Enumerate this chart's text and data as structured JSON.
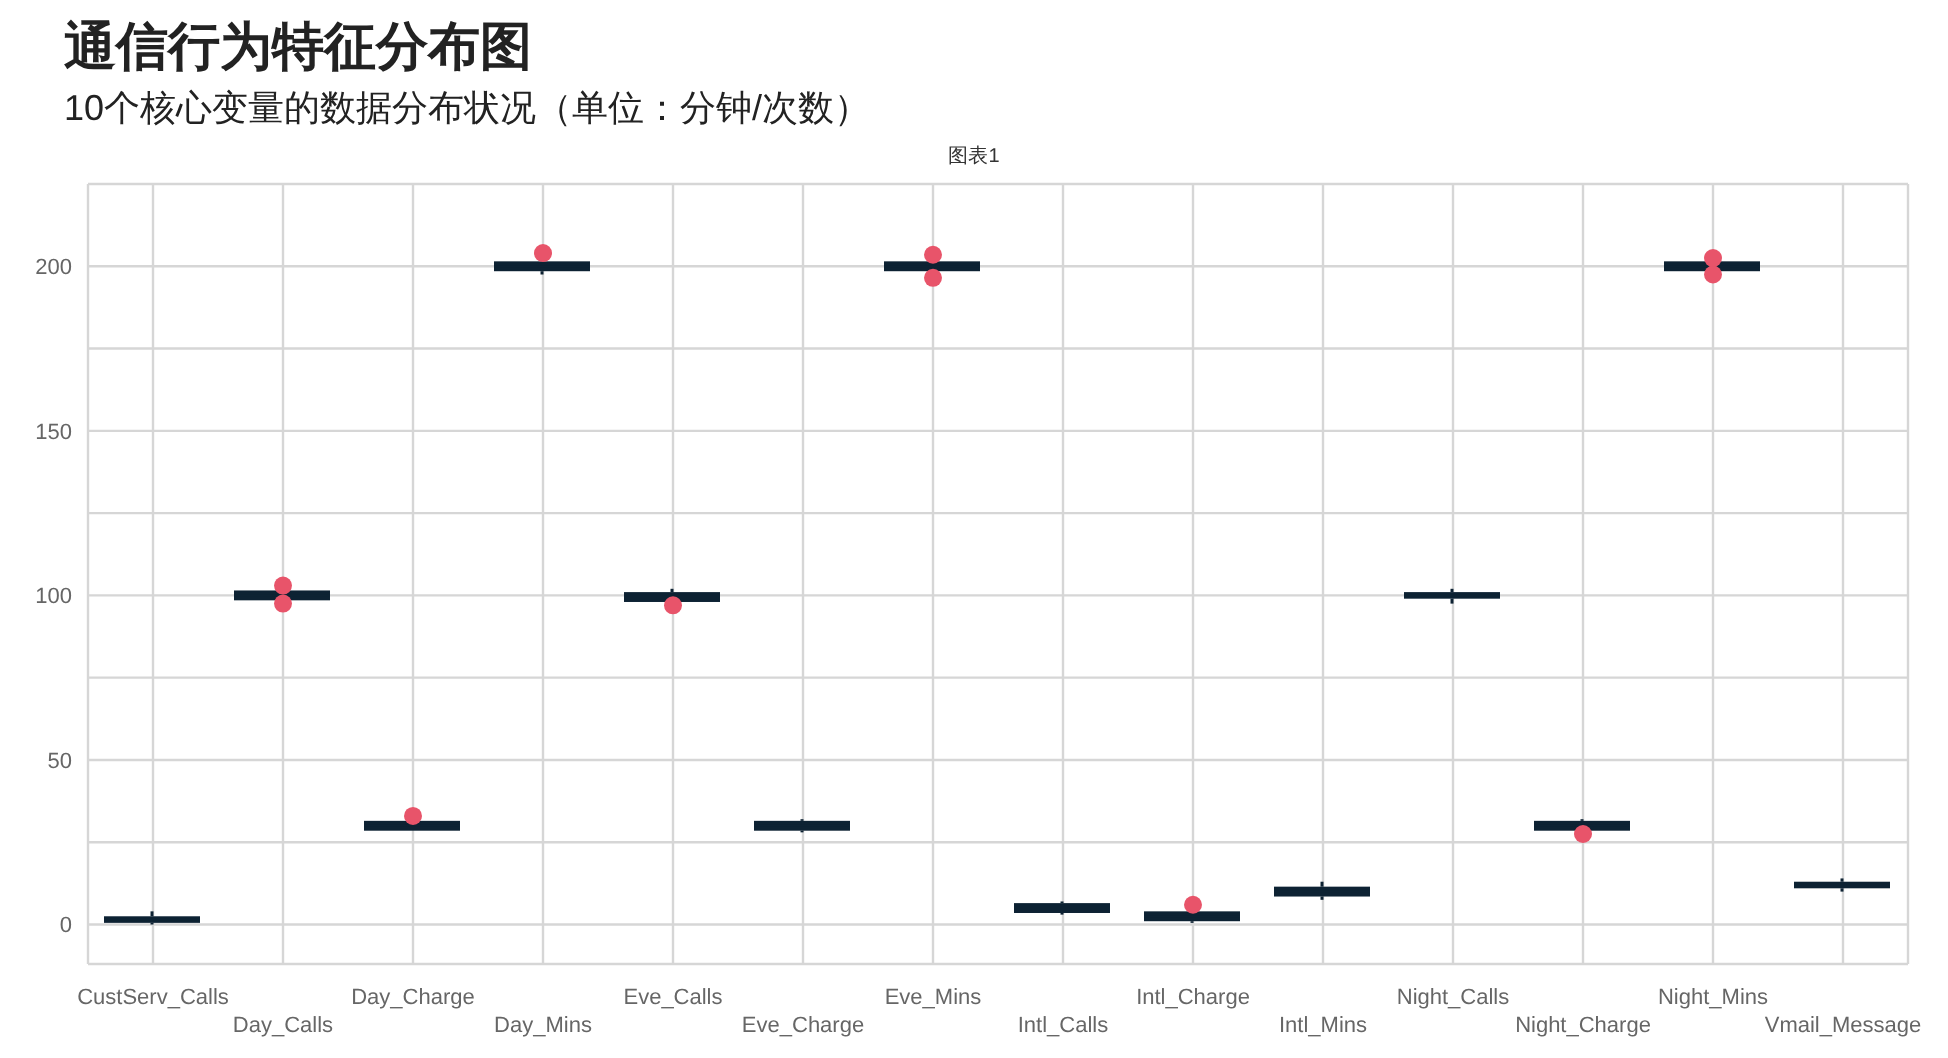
{
  "chart_data": {
    "type": "box",
    "title": "通信行为特征分布图",
    "subtitle": "10个核心变量的数据分布状况（单位：分钟/次数）",
    "annotations": [
      "图表1"
    ],
    "categories": [
      "CustServ_Calls",
      "Day_Calls",
      "Day_Charge",
      "Day_Mins",
      "Eve_Calls",
      "Eve_Charge",
      "Eve_Mins",
      "Intl_Calls",
      "Intl_Charge",
      "Intl_Mins",
      "Night_Calls",
      "Night_Charge",
      "Night_Mins",
      "Vmail_Message"
    ],
    "color": "#0d2233",
    "boxes": [
      {
        "low": 0,
        "q1": 0.5,
        "median": 1.5,
        "q3": 2.5,
        "high": 4
      },
      {
        "low": 98,
        "q1": 98.5,
        "median": 100,
        "q3": 101.5,
        "high": 102
      },
      {
        "low": 28.5,
        "q1": 28.5,
        "median": 30,
        "q3": 31.5,
        "high": 31.5
      },
      {
        "low": 197.5,
        "q1": 198.5,
        "median": 200,
        "q3": 201.5,
        "high": 202.5
      },
      {
        "low": 98,
        "q1": 98,
        "median": 99.5,
        "q3": 101,
        "high": 102
      },
      {
        "low": 28,
        "q1": 28.5,
        "median": 30,
        "q3": 31.5,
        "high": 32
      },
      {
        "low": 198,
        "q1": 198.5,
        "median": 200,
        "q3": 201.5,
        "high": 202
      },
      {
        "low": 3,
        "q1": 3.5,
        "median": 5,
        "q3": 6.5,
        "high": 7
      },
      {
        "low": 0.5,
        "q1": 1,
        "median": 2.5,
        "q3": 4,
        "high": 4.5
      },
      {
        "low": 7.5,
        "q1": 8.5,
        "median": 10,
        "q3": 11.5,
        "high": 13
      },
      {
        "low": 97.5,
        "q1": 99,
        "median": 100,
        "q3": 101,
        "high": 102
      },
      {
        "low": 28.5,
        "q1": 28.5,
        "median": 30,
        "q3": 31.5,
        "high": 32
      },
      {
        "low": 198.5,
        "q1": 198.5,
        "median": 200,
        "q3": 201.5,
        "high": 201.5
      },
      {
        "low": 10,
        "q1": 11,
        "median": 12,
        "q3": 13,
        "high": 14
      }
    ],
    "series": [
      {
        "type": "scatter",
        "color": "#e8546a",
        "x": [
          "Day_Calls",
          "Day_Calls",
          "Day_Charge",
          "Day_Mins",
          "Eve_Calls",
          "Eve_Mins",
          "Eve_Mins",
          "Intl_Charge",
          "Night_Charge",
          "Night_Mins",
          "Night_Mins"
        ],
        "values": [
          97.5,
          103,
          33,
          204,
          97,
          196.5,
          203.5,
          6,
          27.5,
          197.5,
          202.5
        ]
      }
    ],
    "ylim": [
      -12,
      225
    ],
    "yticks": [
      0,
      {
        "value": 25,
        "label": null
      },
      50,
      {
        "value": 75,
        "label": null
      },
      100,
      {
        "value": 125,
        "label": null
      },
      150,
      {
        "value": 175,
        "label": null
      },
      200
    ],
    "grid": true,
    "legend": false,
    "marker": "circle"
  }
}
